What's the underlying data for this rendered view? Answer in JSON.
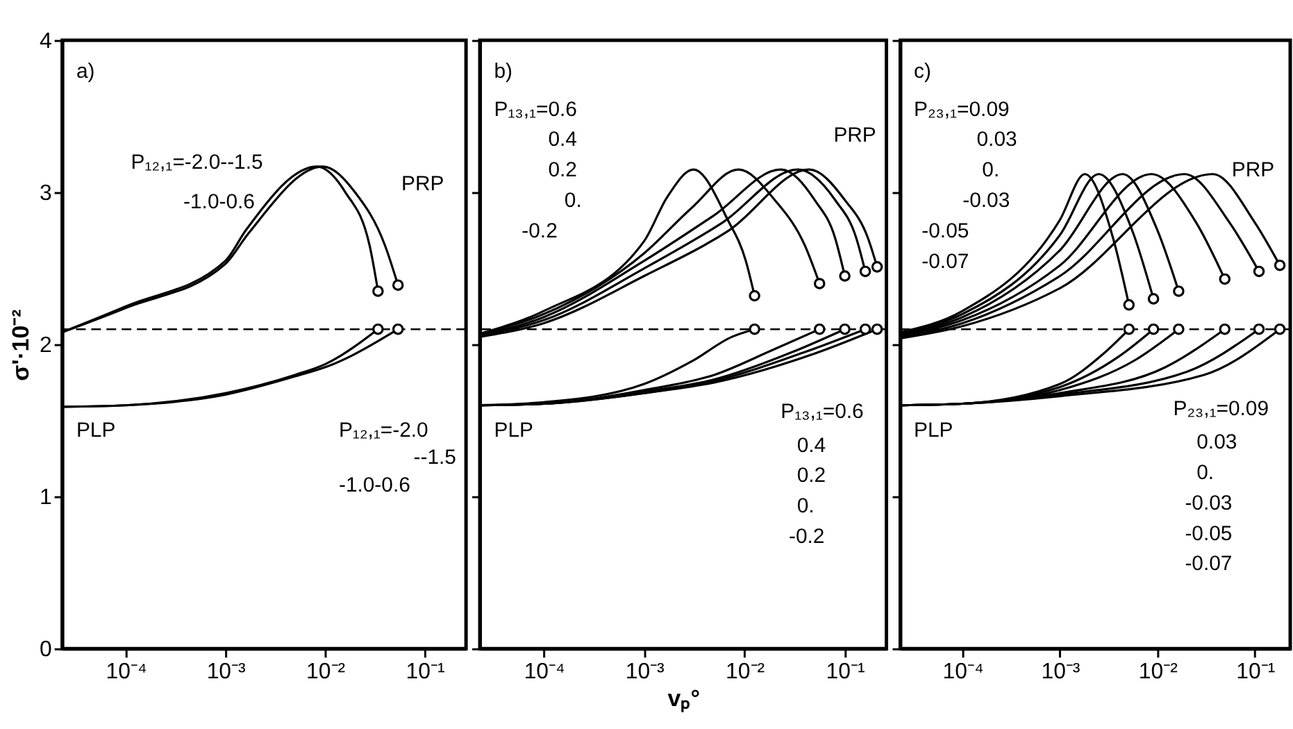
{
  "chart_data": [
    {
      "type": "line",
      "ylabel": "σ'·10⁻²",
      "log": "x",
      "grid": false,
      "xlim": [
        2.3e-05,
        0.26
      ],
      "ylim": [
        0,
        4
      ],
      "yticks": [
        0,
        1,
        2,
        3,
        4
      ],
      "xticks": [
        {
          "value": 0.0001,
          "label": "10⁻⁴"
        },
        {
          "value": 0.001,
          "label": "10⁻³"
        },
        {
          "value": 0.01,
          "label": "10⁻²"
        },
        {
          "value": 0.1,
          "label": "10⁻¹"
        }
      ],
      "ref_lines": [
        {
          "axis": "y",
          "value": 2.1,
          "color": "#000000",
          "line_style": "dashed"
        }
      ],
      "series": [
        {
          "type": "line",
          "color": "#000000",
          "marker": "none",
          "line_style": "solid",
          "x": [
            2.3e-05,
            0.0001,
            0.001,
            0.0016,
            0.0083,
            0.016,
            0.028,
            0.034
          ],
          "values": [
            2.08,
            2.25,
            2.55,
            2.75,
            3.17,
            3.0,
            2.65,
            2.35
          ]
        },
        {
          "type": "line",
          "color": "#000000",
          "marker": "none",
          "line_style": "solid",
          "x": [
            2.3e-05,
            0.0001,
            0.001,
            0.0017,
            0.0095,
            0.02,
            0.04,
            0.054
          ],
          "values": [
            2.08,
            2.24,
            2.53,
            2.73,
            3.17,
            3.0,
            2.65,
            2.39
          ]
        },
        {
          "type": "line",
          "color": "#000000",
          "marker": "none",
          "line_style": "solid",
          "x": [
            2.3e-05,
            0.0001,
            0.001,
            0.005,
            0.01,
            0.034
          ],
          "values": [
            1.59,
            1.6,
            1.68,
            1.8,
            1.87,
            2.1
          ]
        },
        {
          "type": "line",
          "color": "#000000",
          "marker": "none",
          "line_style": "solid",
          "x": [
            2.3e-05,
            0.0001,
            0.001,
            0.005,
            0.011,
            0.054
          ],
          "values": [
            1.59,
            1.6,
            1.67,
            1.79,
            1.86,
            2.1
          ]
        },
        {
          "type": "scatter",
          "color": "#000000",
          "marker": "circle",
          "x": [
            0.034,
            0.054,
            0.034,
            0.054
          ],
          "values": [
            2.35,
            2.39,
            2.1,
            2.1
          ]
        }
      ],
      "annotations": [
        "a)",
        "P₁₂,₁=-2.0--1.5",
        "-1.0-0.6",
        "PRP",
        "P₁₂,₁=-2.0",
        "--1.5",
        "-1.0-0.6",
        "PLP"
      ]
    },
    {
      "type": "line",
      "xlabel": "vₚ°",
      "log": "x",
      "grid": false,
      "tick_labels": "x",
      "xlim": [
        2.3e-05,
        0.26
      ],
      "ylim": [
        0,
        4
      ],
      "yticks": [
        0,
        1,
        2,
        3,
        4
      ],
      "xticks": [
        {
          "value": 0.0001,
          "label": "10⁻⁴"
        },
        {
          "value": 0.001,
          "label": "10⁻³"
        },
        {
          "value": 0.01,
          "label": "10⁻²"
        },
        {
          "value": 0.1,
          "label": "10⁻¹"
        }
      ],
      "ref_lines": [
        {
          "axis": "y",
          "value": 2.1,
          "color": "#000000",
          "line_style": "dashed"
        }
      ],
      "series": [
        {
          "type": "line",
          "color": "#000000",
          "marker": "none",
          "line_style": "solid",
          "x": [
            2.3e-05,
            0.0001,
            0.001,
            0.0017,
            0.0031,
            0.0068,
            0.0103,
            0.0126
          ],
          "values": [
            2.07,
            2.22,
            2.68,
            2.97,
            3.15,
            2.82,
            2.55,
            2.32
          ]
        },
        {
          "type": "line",
          "color": "#000000",
          "marker": "none",
          "line_style": "solid",
          "x": [
            2.3e-05,
            0.0001,
            0.001,
            0.003,
            0.0087,
            0.02,
            0.04,
            0.056
          ],
          "values": [
            2.07,
            2.2,
            2.6,
            2.9,
            3.15,
            2.95,
            2.65,
            2.4
          ]
        },
        {
          "type": "line",
          "color": "#000000",
          "marker": "none",
          "line_style": "solid",
          "x": [
            2.3e-05,
            0.0001,
            0.001,
            0.005,
            0.023,
            0.05,
            0.08,
            0.1
          ],
          "values": [
            2.06,
            2.18,
            2.55,
            2.85,
            3.15,
            2.95,
            2.7,
            2.45
          ]
        },
        {
          "type": "line",
          "color": "#000000",
          "marker": "none",
          "line_style": "solid",
          "x": [
            2.3e-05,
            0.0001,
            0.001,
            0.006,
            0.034,
            0.08,
            0.13,
            0.16
          ],
          "values": [
            2.06,
            2.16,
            2.5,
            2.8,
            3.15,
            2.95,
            2.7,
            2.48
          ]
        },
        {
          "type": "line",
          "color": "#000000",
          "marker": "none",
          "line_style": "solid",
          "x": [
            2.3e-05,
            0.0001,
            0.001,
            0.007,
            0.044,
            0.1,
            0.17,
            0.21
          ],
          "values": [
            2.05,
            2.14,
            2.45,
            2.75,
            3.15,
            2.95,
            2.7,
            2.51
          ]
        },
        {
          "type": "line",
          "color": "#000000",
          "marker": "none",
          "line_style": "solid",
          "x": [
            2.3e-05,
            0.0001,
            0.001,
            0.003,
            0.0075,
            0.0126
          ],
          "values": [
            1.6,
            1.62,
            1.74,
            1.89,
            2.05,
            2.1
          ]
        },
        {
          "type": "line",
          "color": "#000000",
          "marker": "none",
          "line_style": "solid",
          "x": [
            2.3e-05,
            0.0001,
            0.001,
            0.005,
            0.02,
            0.056
          ],
          "values": [
            1.6,
            1.61,
            1.7,
            1.8,
            1.97,
            2.1
          ]
        },
        {
          "type": "line",
          "color": "#000000",
          "marker": "none",
          "line_style": "solid",
          "x": [
            2.3e-05,
            0.0001,
            0.001,
            0.005,
            0.03,
            0.1
          ],
          "values": [
            1.6,
            1.61,
            1.69,
            1.77,
            1.95,
            2.1
          ]
        },
        {
          "type": "line",
          "color": "#000000",
          "marker": "none",
          "line_style": "solid",
          "x": [
            2.3e-05,
            0.0001,
            0.001,
            0.005,
            0.04,
            0.16
          ],
          "values": [
            1.6,
            1.61,
            1.68,
            1.76,
            1.95,
            2.1
          ]
        },
        {
          "type": "line",
          "color": "#000000",
          "marker": "none",
          "line_style": "solid",
          "x": [
            2.3e-05,
            0.0001,
            0.001,
            0.005,
            0.05,
            0.21
          ],
          "values": [
            1.6,
            1.61,
            1.68,
            1.75,
            1.94,
            2.1
          ]
        },
        {
          "type": "scatter",
          "color": "#000000",
          "marker": "circle",
          "x": [
            0.0126,
            0.056,
            0.1,
            0.16,
            0.21,
            0.0126,
            0.056,
            0.1,
            0.16,
            0.21
          ],
          "values": [
            2.32,
            2.4,
            2.45,
            2.48,
            2.51,
            2.1,
            2.1,
            2.1,
            2.1,
            2.1
          ]
        }
      ],
      "annotations": [
        "b)",
        "P₁₃,₁=0.6",
        "0.4",
        "0.2",
        "0.",
        "-0.2",
        "PRP",
        "P₁₃,₁=0.6",
        "0.4",
        "0.2",
        "0.",
        "-0.2",
        "PLP"
      ]
    },
    {
      "type": "line",
      "log": "x",
      "grid": false,
      "tick_labels": "x",
      "xlim": [
        2.3e-05,
        0.23
      ],
      "ylim": [
        0,
        4
      ],
      "yticks": [
        0,
        1,
        2,
        3,
        4
      ],
      "xticks": [
        {
          "value": 0.0001,
          "label": "10⁻⁴"
        },
        {
          "value": 0.001,
          "label": "10⁻³"
        },
        {
          "value": 0.01,
          "label": "10⁻²"
        },
        {
          "value": 0.1,
          "label": "10⁻¹"
        }
      ],
      "ref_lines": [
        {
          "axis": "y",
          "value": 2.1,
          "color": "#000000",
          "line_style": "dashed"
        }
      ],
      "series": [
        {
          "type": "line",
          "color": "#000000",
          "marker": "none",
          "line_style": "solid",
          "x": [
            2.3e-05,
            0.0001,
            0.001,
            0.0018,
            0.0035,
            0.0051
          ],
          "values": [
            2.08,
            2.22,
            2.82,
            3.12,
            2.7,
            2.26
          ]
        },
        {
          "type": "line",
          "color": "#000000",
          "marker": "none",
          "line_style": "solid",
          "x": [
            2.3e-05,
            0.0001,
            0.001,
            0.0025,
            0.0055,
            0.0091
          ],
          "values": [
            2.08,
            2.2,
            2.72,
            3.12,
            2.75,
            2.3
          ]
        },
        {
          "type": "line",
          "color": "#000000",
          "marker": "none",
          "line_style": "solid",
          "x": [
            2.3e-05,
            0.0001,
            0.001,
            0.0044,
            0.01,
            0.0165
          ],
          "values": [
            2.07,
            2.18,
            2.62,
            3.12,
            2.75,
            2.35
          ]
        },
        {
          "type": "line",
          "color": "#000000",
          "marker": "none",
          "line_style": "solid",
          "x": [
            2.3e-05,
            0.0001,
            0.001,
            0.0087,
            0.025,
            0.049
          ],
          "values": [
            2.06,
            2.16,
            2.52,
            3.12,
            2.8,
            2.43
          ]
        },
        {
          "type": "line",
          "color": "#000000",
          "marker": "none",
          "line_style": "solid",
          "x": [
            2.3e-05,
            0.0001,
            0.001,
            0.019,
            0.055,
            0.11
          ],
          "values": [
            2.05,
            2.14,
            2.45,
            3.12,
            2.8,
            2.48
          ]
        },
        {
          "type": "line",
          "color": "#000000",
          "marker": "none",
          "line_style": "solid",
          "x": [
            2.3e-05,
            0.0001,
            0.001,
            0.037,
            0.1,
            0.18
          ],
          "values": [
            2.04,
            2.12,
            2.37,
            3.12,
            2.8,
            2.52
          ]
        },
        {
          "type": "line",
          "color": "#000000",
          "marker": "none",
          "line_style": "solid",
          "x": [
            2.3e-05,
            0.0001,
            0.001,
            0.0028,
            0.0051
          ],
          "values": [
            1.6,
            1.61,
            1.74,
            1.94,
            2.1
          ]
        },
        {
          "type": "line",
          "color": "#000000",
          "marker": "none",
          "line_style": "solid",
          "x": [
            2.3e-05,
            0.0001,
            0.001,
            0.004,
            0.0091
          ],
          "values": [
            1.6,
            1.61,
            1.72,
            1.92,
            2.1
          ]
        },
        {
          "type": "line",
          "color": "#000000",
          "marker": "none",
          "line_style": "solid",
          "x": [
            2.3e-05,
            0.0001,
            0.001,
            0.006,
            0.0165
          ],
          "values": [
            1.6,
            1.61,
            1.7,
            1.9,
            2.1
          ]
        },
        {
          "type": "line",
          "color": "#000000",
          "marker": "none",
          "line_style": "solid",
          "x": [
            2.3e-05,
            0.0001,
            0.001,
            0.012,
            0.049
          ],
          "values": [
            1.6,
            1.61,
            1.68,
            1.85,
            2.1
          ]
        },
        {
          "type": "line",
          "color": "#000000",
          "marker": "none",
          "line_style": "solid",
          "x": [
            2.3e-05,
            0.0001,
            0.001,
            0.02,
            0.11
          ],
          "values": [
            1.6,
            1.61,
            1.67,
            1.82,
            2.1
          ]
        },
        {
          "type": "line",
          "color": "#000000",
          "marker": "none",
          "line_style": "solid",
          "x": [
            2.3e-05,
            0.0001,
            0.001,
            0.03,
            0.18
          ],
          "values": [
            1.6,
            1.61,
            1.66,
            1.8,
            2.1
          ]
        },
        {
          "type": "scatter",
          "color": "#000000",
          "marker": "circle",
          "x": [
            0.0051,
            0.0091,
            0.0165,
            0.049,
            0.11,
            0.18,
            0.0051,
            0.0091,
            0.0165,
            0.049,
            0.11,
            0.18
          ],
          "values": [
            2.26,
            2.3,
            2.35,
            2.43,
            2.48,
            2.52,
            2.1,
            2.1,
            2.1,
            2.1,
            2.1,
            2.1
          ]
        }
      ],
      "annotations": [
        "c)",
        "P₂₃,₁=0.09",
        "0.03",
        "0.",
        "-0.03",
        "-0.05",
        "-0.07",
        "PRP",
        "P₂₃,₁=0.09",
        "0.03",
        "0.",
        "-0.03",
        "-0.05",
        "-0.07",
        "PLP"
      ]
    }
  ]
}
